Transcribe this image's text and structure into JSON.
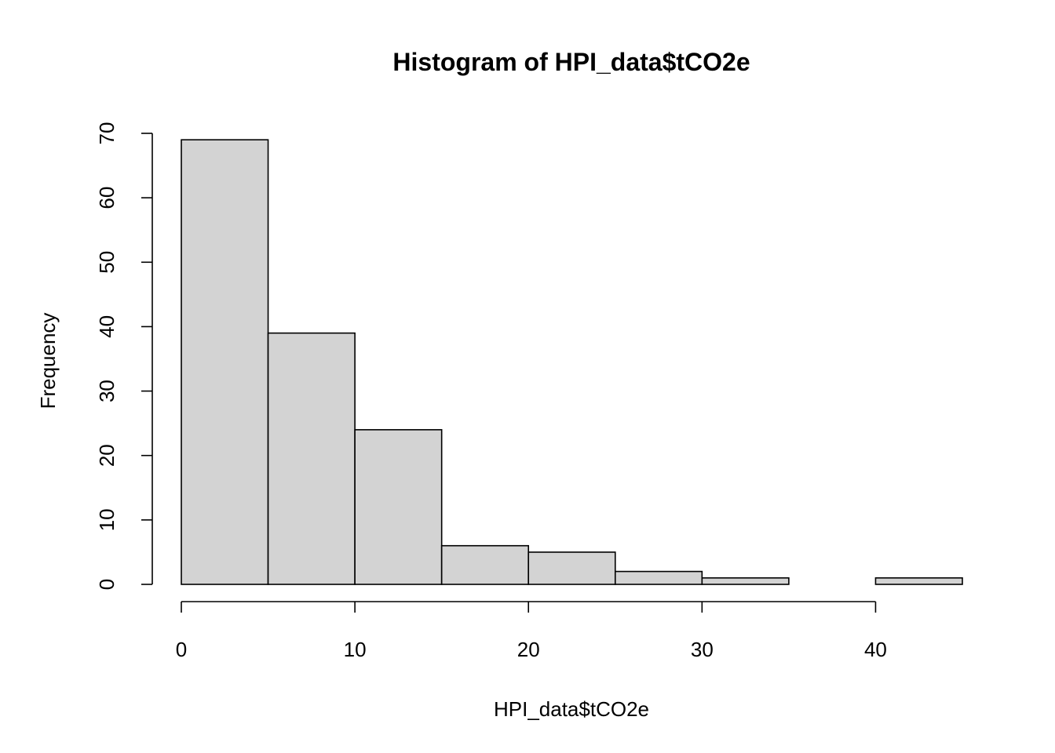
{
  "chart_data": {
    "type": "bar",
    "title": "Histogram of HPI_data$tCO2e",
    "xlabel": "HPI_data$tCO2e",
    "ylabel": "Frequency",
    "bins": [
      {
        "start": 0,
        "end": 5,
        "count": 69
      },
      {
        "start": 5,
        "end": 10,
        "count": 39
      },
      {
        "start": 10,
        "end": 15,
        "count": 24
      },
      {
        "start": 15,
        "end": 20,
        "count": 6
      },
      {
        "start": 20,
        "end": 25,
        "count": 5
      },
      {
        "start": 25,
        "end": 30,
        "count": 2
      },
      {
        "start": 30,
        "end": 35,
        "count": 1
      },
      {
        "start": 35,
        "end": 40,
        "count": 0
      },
      {
        "start": 40,
        "end": 45,
        "count": 1
      }
    ],
    "xticks": [
      "0",
      "10",
      "20",
      "30",
      "40"
    ],
    "yticks": [
      "0",
      "10",
      "20",
      "30",
      "40",
      "50",
      "60",
      "70"
    ],
    "xlim": [
      0,
      45
    ],
    "ylim": [
      0,
      70
    ],
    "grid": false,
    "colors": {
      "bar_fill": "#d3d3d3",
      "bar_stroke": "#000000"
    }
  }
}
